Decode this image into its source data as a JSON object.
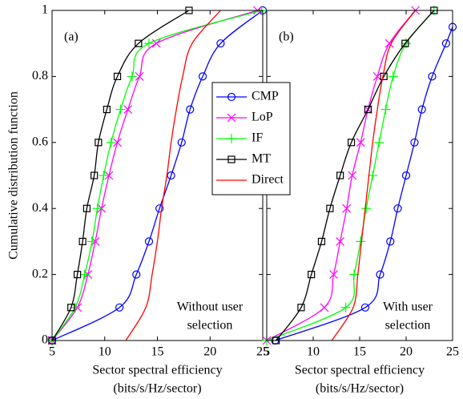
{
  "chart_data": [
    {
      "type": "line",
      "panel_label": "(a)",
      "y_label": "Cumulative distribution function",
      "x_label": [
        "Sector spectral efficiency",
        "(bits/s/Hz/sector)"
      ],
      "annotation": [
        "Without user",
        "selection"
      ],
      "xlim": [
        5,
        25
      ],
      "xticks": [
        5,
        10,
        15,
        20,
        25
      ],
      "ylim": [
        0,
        1
      ],
      "yticks": [
        0,
        0.2,
        0.4,
        0.6,
        0.8,
        1
      ],
      "series": [
        {
          "name": "CMP",
          "color": "#0000ff",
          "marker": "circle",
          "x": [
            5,
            11.4,
            13.0,
            14.2,
            15.2,
            16.3,
            17.3,
            18.1,
            19.3,
            21.0,
            25
          ],
          "values": [
            0,
            0.1,
            0.2,
            0.3,
            0.4,
            0.5,
            0.6,
            0.7,
            0.8,
            0.9,
            1
          ]
        },
        {
          "name": "LoP",
          "color": "#ff00ff",
          "marker": "x",
          "x": [
            5,
            7.4,
            8.4,
            9.1,
            9.7,
            10.4,
            11.2,
            12.2,
            13.3,
            14.9,
            24.5
          ],
          "values": [
            0,
            0.1,
            0.2,
            0.3,
            0.4,
            0.5,
            0.6,
            0.7,
            0.8,
            0.9,
            1
          ]
        },
        {
          "name": "IF",
          "color": "#00ff00",
          "marker": "plus",
          "x": [
            5,
            7.2,
            8.1,
            8.8,
            9.3,
            9.9,
            10.6,
            11.5,
            12.6,
            14.2,
            24.9
          ],
          "values": [
            0,
            0.1,
            0.2,
            0.3,
            0.4,
            0.5,
            0.6,
            0.7,
            0.8,
            0.9,
            1
          ]
        },
        {
          "name": "MT",
          "color": "#000000",
          "marker": "square",
          "x": [
            5,
            6.8,
            7.4,
            7.9,
            8.3,
            9.0,
            9.4,
            10.2,
            11.2,
            13.2,
            18
          ],
          "values": [
            0,
            0.1,
            0.2,
            0.3,
            0.4,
            0.5,
            0.6,
            0.7,
            0.8,
            0.9,
            1
          ]
        },
        {
          "name": "Direct",
          "color": "#ff0000",
          "x": [
            12,
            13.9,
            14.5,
            15.0,
            15.4,
            15.9,
            16.3,
            16.8,
            17.4,
            18.3,
            21
          ],
          "values": [
            0,
            0.1,
            0.2,
            0.3,
            0.4,
            0.5,
            0.6,
            0.7,
            0.8,
            0.9,
            1
          ]
        }
      ]
    },
    {
      "type": "line",
      "panel_label": "(b)",
      "x_label": [
        "Sector spectral efficiency",
        "(bits/s/Hz/sector)"
      ],
      "annotation": [
        "With user",
        "selection"
      ],
      "xlim": [
        5,
        25
      ],
      "xticks": [
        5,
        10,
        15,
        20,
        25
      ],
      "ylim": [
        0,
        1
      ],
      "yticks": [
        0,
        0.2,
        0.4,
        0.6,
        0.8,
        1
      ],
      "series": [
        {
          "color": "#0000ff",
          "marker": "circle",
          "x": [
            5.9,
            15.6,
            17.2,
            18.3,
            19.1,
            20,
            20.9,
            21.7,
            22.8,
            24.3,
            25
          ],
          "values": [
            0,
            0.1,
            0.2,
            0.3,
            0.4,
            0.5,
            0.6,
            0.7,
            0.8,
            0.9,
            0.95
          ]
        },
        {
          "color": "#ff00ff",
          "marker": "x",
          "x": [
            5,
            11.2,
            12.2,
            12.9,
            13.6,
            14.2,
            15.1,
            15.9,
            16.9,
            18.2,
            21
          ],
          "values": [
            0,
            0.1,
            0.2,
            0.3,
            0.4,
            0.5,
            0.6,
            0.7,
            0.8,
            0.9,
            1
          ]
        },
        {
          "color": "#00ff00",
          "marker": "plus",
          "x": [
            5,
            13.5,
            14.4,
            15.1,
            15.7,
            16.4,
            17.1,
            17.8,
            18.6,
            20,
            23
          ],
          "values": [
            0,
            0.1,
            0.2,
            0.3,
            0.4,
            0.5,
            0.6,
            0.7,
            0.8,
            0.9,
            1
          ]
        },
        {
          "color": "#000000",
          "marker": "square",
          "x": [
            6,
            8.7,
            9.8,
            10.9,
            11.8,
            12.9,
            14.1,
            15.9,
            17.6,
            19.9,
            23
          ],
          "values": [
            0,
            0.1,
            0.2,
            0.3,
            0.4,
            0.5,
            0.6,
            0.7,
            0.8,
            0.9,
            1
          ]
        },
        {
          "color": "#ff0000",
          "x": [
            12,
            14.3,
            14.8,
            15.2,
            15.6,
            16.0,
            16.4,
            16.9,
            17.5,
            18.4,
            21
          ],
          "values": [
            0,
            0.1,
            0.2,
            0.3,
            0.4,
            0.5,
            0.6,
            0.7,
            0.8,
            0.9,
            1
          ]
        }
      ]
    }
  ]
}
